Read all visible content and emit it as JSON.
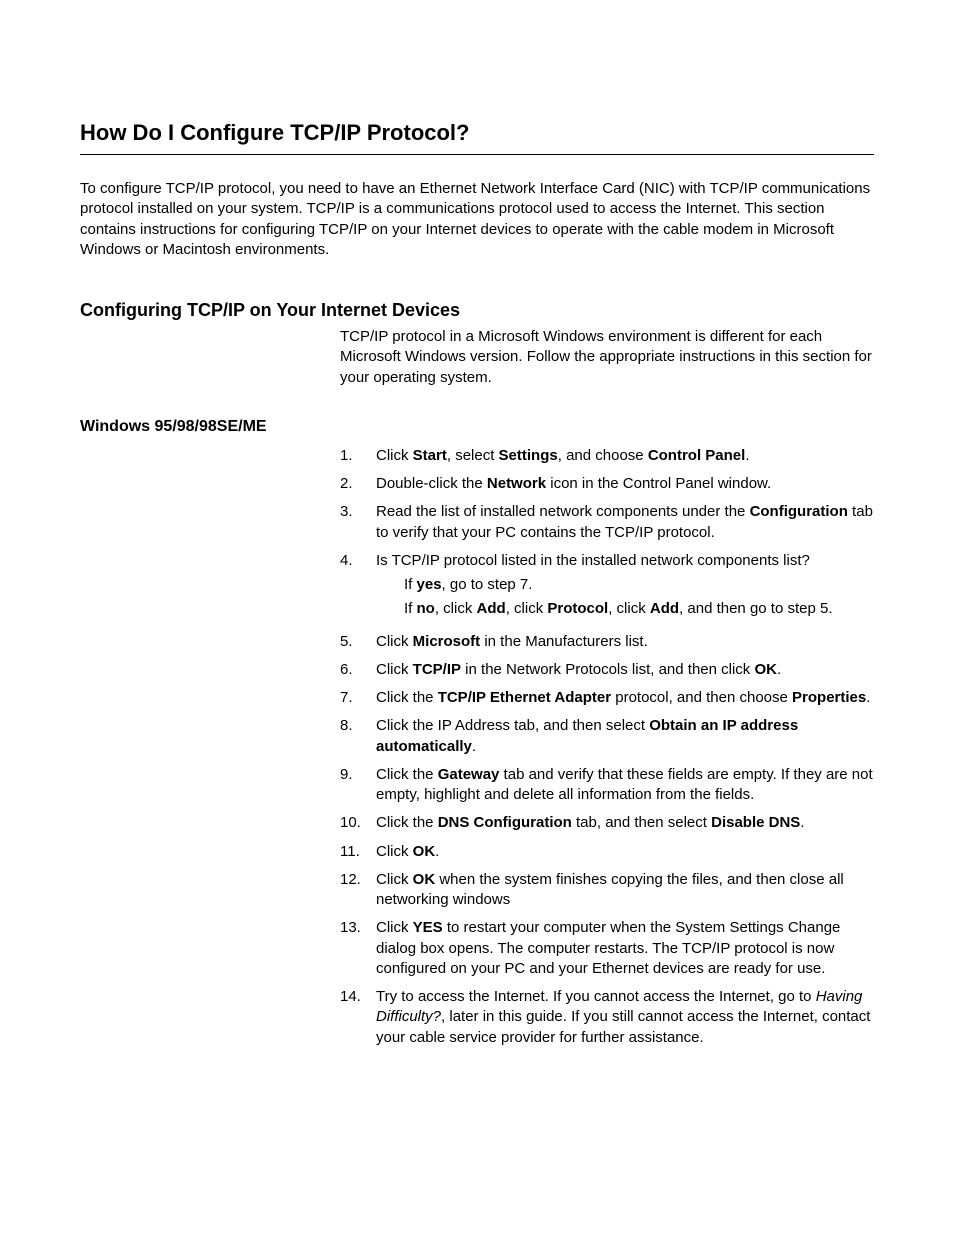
{
  "section": {
    "title": "How Do I Configure TCP/IP Protocol?",
    "intro": "To configure TCP/IP protocol, you need to have an Ethernet Network Interface Card (NIC) with TCP/IP communications protocol installed on your system. TCP/IP is a communications protocol used to access the Internet. This section contains instructions for configuring TCP/IP on your Internet devices to operate with the cable modem in Microsoft Windows or Macintosh environments."
  },
  "sub1": {
    "title": "Configuring TCP/IP on Your Internet Devices",
    "body": "TCP/IP protocol in a Microsoft Windows environment is different for each Microsoft Windows version. Follow the appropriate instructions in this section for your operating system."
  },
  "sub2": {
    "title": "Windows 95/98/98SE/ME"
  },
  "steps": [
    {
      "n": "1.",
      "parts": [
        {
          "t": "Click ",
          "b": false
        },
        {
          "t": "Start",
          "b": true
        },
        {
          "t": ", select ",
          "b": false
        },
        {
          "t": "Settings",
          "b": true
        },
        {
          "t": ", and choose ",
          "b": false
        },
        {
          "t": "Control Panel",
          "b": true
        },
        {
          "t": ".",
          "b": false
        }
      ]
    },
    {
      "n": "2.",
      "parts": [
        {
          "t": "Double-click the ",
          "b": false
        },
        {
          "t": "Network",
          "b": true
        },
        {
          "t": " icon in the Control Panel window.",
          "b": false
        }
      ]
    },
    {
      "n": "3.",
      "parts": [
        {
          "t": "Read the list of installed network components under the ",
          "b": false
        },
        {
          "t": "Configuration",
          "b": true
        },
        {
          "t": " tab to verify that your PC contains the TCP/IP protocol.",
          "b": false
        }
      ]
    },
    {
      "n": "4.",
      "parts": [
        {
          "t": "Is TCP/IP protocol listed in the installed network components list?",
          "b": false
        }
      ],
      "sub": [
        [
          {
            "t": "If ",
            "b": false
          },
          {
            "t": "yes",
            "b": true
          },
          {
            "t": ", go to step 7.",
            "b": false
          }
        ],
        [
          {
            "t": "If ",
            "b": false
          },
          {
            "t": "no",
            "b": true
          },
          {
            "t": ", click ",
            "b": false
          },
          {
            "t": "Add",
            "b": true
          },
          {
            "t": ", click ",
            "b": false
          },
          {
            "t": "Protocol",
            "b": true
          },
          {
            "t": ", click ",
            "b": false
          },
          {
            "t": "Add",
            "b": true
          },
          {
            "t": ", and then go to step 5.",
            "b": false
          }
        ]
      ]
    },
    {
      "n": "5.",
      "parts": [
        {
          "t": "Click ",
          "b": false
        },
        {
          "t": "Microsoft",
          "b": true
        },
        {
          "t": " in the Manufacturers list.",
          "b": false
        }
      ]
    },
    {
      "n": "6.",
      "parts": [
        {
          "t": "Click ",
          "b": false
        },
        {
          "t": "TCP/IP",
          "b": true
        },
        {
          "t": " in the Network Protocols list, and then click ",
          "b": false
        },
        {
          "t": "OK",
          "b": true
        },
        {
          "t": ".",
          "b": false
        }
      ]
    },
    {
      "n": "7.",
      "parts": [
        {
          "t": "Click the ",
          "b": false
        },
        {
          "t": "TCP/IP Ethernet Adapter",
          "b": true
        },
        {
          "t": " protocol, and then choose ",
          "b": false
        },
        {
          "t": "Properties",
          "b": true
        },
        {
          "t": ".",
          "b": false
        }
      ]
    },
    {
      "n": "8.",
      "parts": [
        {
          "t": "Click the IP Address tab, and then select ",
          "b": false
        },
        {
          "t": "Obtain an IP address automatically",
          "b": true
        },
        {
          "t": ".",
          "b": false
        }
      ]
    },
    {
      "n": "9.",
      "parts": [
        {
          "t": "Click the ",
          "b": false
        },
        {
          "t": "Gateway",
          "b": true
        },
        {
          "t": " tab and verify that these fields are empty. If they are not empty, highlight and delete all information from the fields.",
          "b": false
        }
      ]
    },
    {
      "n": "10.",
      "parts": [
        {
          "t": "Click the ",
          "b": false
        },
        {
          "t": "DNS Configuration",
          "b": true
        },
        {
          "t": " tab, and then select ",
          "b": false
        },
        {
          "t": "Disable DNS",
          "b": true
        },
        {
          "t": ".",
          "b": false
        }
      ]
    },
    {
      "n": "11.",
      "parts": [
        {
          "t": "Click ",
          "b": false
        },
        {
          "t": "OK",
          "b": true
        },
        {
          "t": ".",
          "b": false
        }
      ]
    },
    {
      "n": "12.",
      "parts": [
        {
          "t": "Click ",
          "b": false
        },
        {
          "t": "OK",
          "b": true
        },
        {
          "t": " when the system finishes copying the files, and then close all networking windows",
          "b": false
        }
      ]
    },
    {
      "n": "13.",
      "parts": [
        {
          "t": "Click ",
          "b": false
        },
        {
          "t": "YES",
          "b": true
        },
        {
          "t": " to restart your computer when the System Settings Change dialog box opens. The computer restarts. The TCP/IP protocol is now configured on your PC and your Ethernet devices are ready for use.",
          "b": false
        }
      ]
    },
    {
      "n": "14.",
      "parts": [
        {
          "t": "Try to access the Internet. If you cannot access the Internet, go to ",
          "b": false
        },
        {
          "t": "Having Difficulty?",
          "i": true
        },
        {
          "t": ", later in this guide. If you still cannot access the Internet, contact your cable service provider for further assistance.",
          "b": false
        }
      ]
    }
  ]
}
